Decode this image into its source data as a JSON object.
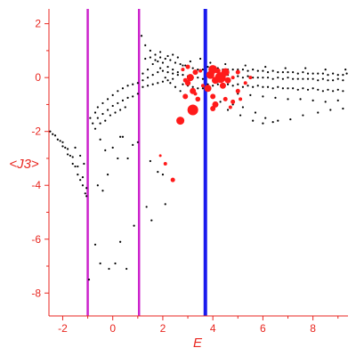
{
  "chart_data": {
    "type": "scatter",
    "xlabel": "E",
    "ylabel": "<J3>",
    "xlim": [
      -2.55,
      9.4
    ],
    "ylim": [
      -8.85,
      2.55
    ],
    "x_ticks": [
      "-2",
      "0",
      "2",
      "4",
      "6",
      "8"
    ],
    "y_ticks": [
      "2",
      "0",
      "-2",
      "-4",
      "-6",
      "-8"
    ],
    "axis_color": "#e8261f",
    "grid": false,
    "vertical_lines": [
      {
        "x": -1.0,
        "color": "#cc22cc"
      },
      {
        "x": 1.05,
        "color": "#cc22cc"
      },
      {
        "x": 3.7,
        "color": "#1a1aee"
      }
    ],
    "series": [
      {
        "color": "#000000",
        "note_branches": true,
        "points": [
          [
            -2.5,
            -2.0
          ],
          [
            -2.3,
            -2.15
          ],
          [
            -2.1,
            -2.35
          ],
          [
            -1.9,
            -2.6
          ],
          [
            -1.7,
            -2.9
          ],
          [
            -1.5,
            -3.3
          ],
          [
            -1.3,
            -3.8
          ],
          [
            -1.1,
            -4.3
          ],
          [
            -2.4,
            -2.1
          ],
          [
            -2.2,
            -2.3
          ],
          [
            -2.0,
            -2.55
          ],
          [
            -1.8,
            -2.85
          ],
          [
            -1.6,
            -3.2
          ],
          [
            -1.4,
            -3.6
          ],
          [
            -1.2,
            -4.0
          ],
          [
            -1.05,
            -4.4
          ],
          [
            -2.0,
            -2.4
          ],
          [
            -1.8,
            -2.65
          ],
          [
            -1.6,
            -2.95
          ],
          [
            -1.4,
            -3.3
          ],
          [
            -1.2,
            -3.7
          ],
          [
            -1.05,
            -4.1
          ],
          [
            -1.5,
            -2.6
          ],
          [
            -1.3,
            -2.9
          ],
          [
            -1.15,
            -3.2
          ],
          [
            -0.95,
            -7.5
          ],
          [
            -0.7,
            -6.2
          ],
          [
            -0.5,
            -6.9
          ],
          [
            -0.15,
            -7.1
          ],
          [
            0.3,
            -6.1
          ],
          [
            0.55,
            -7.1
          ],
          [
            0.1,
            -6.9
          ],
          [
            0.85,
            -5.5
          ],
          [
            -0.6,
            -4.0
          ],
          [
            -0.4,
            -4.2
          ],
          [
            -0.2,
            -3.6
          ],
          [
            0.0,
            -2.6
          ],
          [
            0.2,
            -3.0
          ],
          [
            0.4,
            -2.2
          ],
          [
            -0.3,
            -2.7
          ],
          [
            -0.5,
            -2.3
          ],
          [
            0.6,
            -3.0
          ],
          [
            0.8,
            -2.5
          ],
          [
            1.0,
            -2.4
          ],
          [
            0.3,
            -2.2
          ],
          [
            1.5,
            -3.1
          ],
          [
            1.35,
            -4.8
          ],
          [
            1.8,
            -3.5
          ],
          [
            2.0,
            -3.6
          ],
          [
            2.1,
            -4.7
          ],
          [
            1.55,
            -5.3
          ],
          [
            -0.9,
            -1.5
          ],
          [
            -0.7,
            -1.3
          ],
          [
            -0.6,
            -1.1
          ],
          [
            -0.4,
            -0.95
          ],
          [
            -0.2,
            -0.8
          ],
          [
            0.0,
            -0.65
          ],
          [
            0.2,
            -0.5
          ],
          [
            0.4,
            -0.4
          ],
          [
            0.6,
            -0.3
          ],
          [
            0.8,
            -0.25
          ],
          [
            1.0,
            -0.2
          ],
          [
            -0.8,
            -1.7
          ],
          [
            -0.6,
            -1.5
          ],
          [
            -0.4,
            -1.35
          ],
          [
            -0.2,
            -1.2
          ],
          [
            0.0,
            -1.05
          ],
          [
            0.2,
            -0.95
          ],
          [
            0.4,
            -0.85
          ],
          [
            0.6,
            -0.75
          ],
          [
            0.8,
            -0.7
          ],
          [
            1.0,
            -0.6
          ],
          [
            -0.7,
            -1.9
          ],
          [
            -0.5,
            -1.7
          ],
          [
            -0.3,
            -1.6
          ],
          [
            -0.1,
            -1.4
          ],
          [
            0.1,
            -1.3
          ],
          [
            0.3,
            -1.2
          ],
          [
            0.5,
            -1.1
          ],
          [
            1.2,
            0.15
          ],
          [
            1.4,
            0.3
          ],
          [
            1.6,
            0.5
          ],
          [
            1.8,
            0.6
          ],
          [
            2.0,
            0.55
          ],
          [
            2.2,
            0.4
          ],
          [
            2.4,
            0.3
          ],
          [
            2.6,
            0.2
          ],
          [
            1.2,
            -0.1
          ],
          [
            1.4,
            0.0
          ],
          [
            1.6,
            0.1
          ],
          [
            1.8,
            0.2
          ],
          [
            2.0,
            0.25
          ],
          [
            2.2,
            0.2
          ],
          [
            2.4,
            0.15
          ],
          [
            2.6,
            0.1
          ],
          [
            1.2,
            -0.35
          ],
          [
            1.4,
            -0.3
          ],
          [
            1.6,
            -0.25
          ],
          [
            1.8,
            -0.2
          ],
          [
            2.0,
            -0.15
          ],
          [
            2.2,
            -0.1
          ],
          [
            2.4,
            -0.05
          ],
          [
            1.15,
            1.55
          ],
          [
            1.3,
            1.2
          ],
          [
            1.5,
            1.0
          ],
          [
            1.7,
            0.85
          ],
          [
            1.9,
            0.75
          ],
          [
            2.1,
            0.7
          ],
          [
            2.3,
            0.65
          ],
          [
            2.5,
            0.55
          ],
          [
            2.7,
            0.5
          ],
          [
            2.9,
            0.45
          ],
          [
            1.3,
            0.7
          ],
          [
            1.5,
            0.75
          ],
          [
            1.7,
            0.65
          ],
          [
            1.9,
            0.35
          ],
          [
            2.1,
            0.0
          ],
          [
            2.3,
            -0.2
          ],
          [
            2.5,
            -0.35
          ],
          [
            2.7,
            -0.5
          ],
          [
            2.8,
            0.45
          ],
          [
            3.0,
            0.4
          ],
          [
            3.2,
            0.35
          ],
          [
            3.4,
            0.3
          ],
          [
            3.6,
            0.3
          ],
          [
            2.8,
            0.1
          ],
          [
            3.0,
            0.05
          ],
          [
            3.2,
            0.0
          ],
          [
            3.4,
            0.0
          ],
          [
            3.6,
            -0.05
          ],
          [
            2.8,
            -0.25
          ],
          [
            3.0,
            -0.3
          ],
          [
            3.2,
            -0.35
          ],
          [
            3.4,
            -0.4
          ],
          [
            3.6,
            -0.4
          ],
          [
            3.8,
            0.4
          ],
          [
            4.0,
            0.35
          ],
          [
            4.2,
            0.35
          ],
          [
            4.4,
            0.3
          ],
          [
            4.6,
            0.3
          ],
          [
            4.8,
            0.3
          ],
          [
            5.0,
            0.3
          ],
          [
            5.2,
            0.3
          ],
          [
            5.4,
            0.25
          ],
          [
            5.6,
            0.3
          ],
          [
            5.8,
            0.25
          ],
          [
            6.0,
            0.25
          ],
          [
            6.2,
            0.2
          ],
          [
            6.4,
            0.25
          ],
          [
            6.6,
            0.2
          ],
          [
            6.8,
            0.2
          ],
          [
            7.0,
            0.2
          ],
          [
            7.2,
            0.2
          ],
          [
            7.4,
            0.15
          ],
          [
            7.6,
            0.2
          ],
          [
            7.8,
            0.15
          ],
          [
            8.0,
            0.15
          ],
          [
            8.2,
            0.15
          ],
          [
            8.4,
            0.15
          ],
          [
            8.6,
            0.1
          ],
          [
            8.8,
            0.15
          ],
          [
            9.0,
            0.1
          ],
          [
            9.2,
            0.1
          ],
          [
            9.35,
            0.15
          ],
          [
            3.8,
            0.1
          ],
          [
            4.0,
            0.05
          ],
          [
            4.2,
            0.1
          ],
          [
            4.4,
            0.05
          ],
          [
            4.6,
            0.1
          ],
          [
            4.8,
            0.0
          ],
          [
            5.0,
            0.05
          ],
          [
            5.2,
            0.0
          ],
          [
            5.4,
            0.05
          ],
          [
            5.6,
            0.0
          ],
          [
            5.8,
            0.0
          ],
          [
            6.0,
            0.0
          ],
          [
            6.2,
            0.0
          ],
          [
            6.4,
            -0.05
          ],
          [
            6.6,
            0.0
          ],
          [
            6.8,
            -0.05
          ],
          [
            7.0,
            0.0
          ],
          [
            7.2,
            -0.05
          ],
          [
            7.4,
            -0.05
          ],
          [
            7.6,
            -0.05
          ],
          [
            7.8,
            -0.05
          ],
          [
            8.0,
            -0.05
          ],
          [
            8.2,
            -0.1
          ],
          [
            8.4,
            -0.05
          ],
          [
            8.6,
            -0.1
          ],
          [
            8.8,
            -0.1
          ],
          [
            9.0,
            -0.05
          ],
          [
            9.2,
            -0.1
          ],
          [
            3.8,
            -0.25
          ],
          [
            4.0,
            -0.3
          ],
          [
            4.2,
            -0.25
          ],
          [
            4.4,
            -0.3
          ],
          [
            4.6,
            -0.25
          ],
          [
            4.8,
            -0.3
          ],
          [
            5.0,
            -0.25
          ],
          [
            5.2,
            -0.35
          ],
          [
            5.4,
            -0.3
          ],
          [
            5.6,
            -0.35
          ],
          [
            5.8,
            -0.3
          ],
          [
            6.0,
            -0.35
          ],
          [
            6.2,
            -0.35
          ],
          [
            6.4,
            -0.4
          ],
          [
            6.6,
            -0.35
          ],
          [
            6.8,
            -0.4
          ],
          [
            7.0,
            -0.4
          ],
          [
            7.2,
            -0.4
          ],
          [
            7.4,
            -0.45
          ],
          [
            7.6,
            -0.4
          ],
          [
            7.8,
            -0.45
          ],
          [
            8.0,
            -0.4
          ],
          [
            8.2,
            -0.45
          ],
          [
            8.4,
            -0.5
          ],
          [
            8.6,
            -0.45
          ],
          [
            8.8,
            -0.5
          ],
          [
            9.0,
            -0.45
          ],
          [
            9.2,
            -0.5
          ],
          [
            5.0,
            -0.6
          ],
          [
            5.5,
            -0.65
          ],
          [
            6.0,
            -0.7
          ],
          [
            6.5,
            -0.75
          ],
          [
            7.0,
            -0.8
          ],
          [
            7.5,
            -0.8
          ],
          [
            8.0,
            -0.85
          ],
          [
            8.5,
            -0.9
          ],
          [
            9.0,
            -0.85
          ],
          [
            4.3,
            -0.9
          ],
          [
            4.8,
            -1.0
          ],
          [
            5.2,
            -1.1
          ],
          [
            5.7,
            -1.3
          ],
          [
            6.1,
            -1.5
          ],
          [
            6.6,
            -1.6
          ],
          [
            7.1,
            -1.55
          ],
          [
            7.6,
            -1.4
          ],
          [
            8.2,
            -1.3
          ],
          [
            8.7,
            -1.2
          ],
          [
            9.2,
            -1.15
          ],
          [
            5.6,
            -1.6
          ],
          [
            6.0,
            -1.7
          ],
          [
            6.4,
            -1.65
          ],
          [
            5.1,
            -1.4
          ],
          [
            4.6,
            -1.2
          ],
          [
            3.9,
            0.55
          ],
          [
            4.5,
            0.5
          ],
          [
            5.3,
            0.45
          ],
          [
            6.1,
            0.4
          ],
          [
            6.9,
            0.35
          ],
          [
            7.7,
            0.35
          ],
          [
            8.5,
            0.3
          ],
          [
            9.3,
            0.3
          ],
          [
            3.5,
            0.7
          ],
          [
            2.6,
            0.75
          ],
          [
            2.2,
            0.8
          ],
          [
            1.9,
            0.95
          ],
          [
            2.4,
            0.85
          ],
          [
            3.1,
            0.6
          ]
        ]
      },
      {
        "color": "#ff1a1a",
        "points": [
          [
            3.0,
            -0.2,
            3.2
          ],
          [
            3.1,
            0.0,
            4.0
          ],
          [
            3.3,
            0.2,
            3.0
          ],
          [
            3.0,
            0.4,
            2.5
          ],
          [
            3.2,
            -0.5,
            3.5
          ],
          [
            3.4,
            -0.8,
            2.8
          ],
          [
            2.9,
            -0.7,
            3.0
          ],
          [
            3.2,
            -1.2,
            6.0
          ],
          [
            2.7,
            -1.6,
            4.5
          ],
          [
            2.9,
            -0.1,
            2.5
          ],
          [
            3.9,
            0.1,
            4.5
          ],
          [
            4.1,
            -0.1,
            4.0
          ],
          [
            4.3,
            0.0,
            6.0
          ],
          [
            4.0,
            0.3,
            5.0
          ],
          [
            4.5,
            0.2,
            4.5
          ],
          [
            4.6,
            -0.1,
            3.5
          ],
          [
            4.2,
            0.25,
            3.0
          ],
          [
            3.8,
            -0.4,
            4.0
          ],
          [
            4.0,
            -0.7,
            3.0
          ],
          [
            4.4,
            -0.3,
            3.5
          ],
          [
            4.1,
            -1.0,
            3.5
          ],
          [
            4.5,
            -0.8,
            2.5
          ],
          [
            4.0,
            -1.15,
            3.0
          ],
          [
            4.8,
            -0.9,
            2.5
          ],
          [
            5.1,
            -0.8,
            2.0
          ],
          [
            5.0,
            -0.5,
            2.5
          ],
          [
            4.7,
            -1.1,
            2.0
          ],
          [
            5.3,
            -0.2,
            2.0
          ],
          [
            5.0,
            0.2,
            2.5
          ],
          [
            5.5,
            0.0,
            2.0
          ],
          [
            2.8,
            0.3,
            2.0
          ],
          [
            3.5,
            0.25,
            2.0
          ],
          [
            3.6,
            -0.3,
            2.0
          ],
          [
            2.1,
            -3.2,
            2.0
          ],
          [
            2.4,
            -3.8,
            2.5
          ],
          [
            1.9,
            -2.9,
            1.5
          ],
          [
            3.3,
            -0.6,
            2.0
          ],
          [
            4.8,
            0.0,
            2.0
          ]
        ]
      }
    ]
  }
}
